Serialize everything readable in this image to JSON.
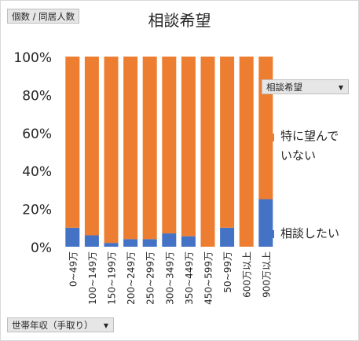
{
  "values_button": {
    "label": "個数 / 同居人数"
  },
  "filter_button": {
    "label": "相談希望",
    "arrow": "▼"
  },
  "axis_button": {
    "label": "世帯年収（手取り）",
    "arrow": "▼"
  },
  "legend": {
    "items": [
      {
        "label_line1": "特に望んで",
        "label_line2": "いない",
        "color": "#ed7d31"
      },
      {
        "label_line1": "相談したい",
        "label_line2": "",
        "color": "#4472c4"
      }
    ]
  },
  "chart_data": {
    "type": "bar",
    "stacked": true,
    "percent": true,
    "title": "相談希望",
    "categories": [
      "0~49万",
      "100~149万",
      "150~199万",
      "200~249万",
      "250~299万",
      "300~349万",
      "350~449万",
      "450~599万",
      "50~99万",
      "600万以上",
      "900万以上"
    ],
    "series": [
      {
        "name": "相談したい",
        "color": "#4472c4",
        "values": [
          10,
          6,
          2,
          4,
          4,
          7,
          5.5,
          0,
          10,
          0,
          25
        ]
      },
      {
        "name": "特に望んでいない",
        "color": "#ed7d31",
        "values": [
          90,
          94,
          98,
          96,
          96,
          93,
          94.5,
          100,
          90,
          100,
          75
        ]
      }
    ],
    "yticks": [
      "0%",
      "20%",
      "40%",
      "60%",
      "80%",
      "100%"
    ],
    "ylim": [
      0,
      100
    ],
    "grid": false,
    "legend_position": "right"
  }
}
